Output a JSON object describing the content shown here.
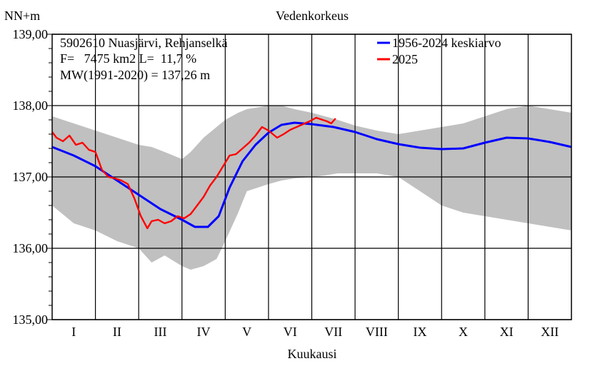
{
  "chart_data": {
    "type": "line",
    "title": "Vedenkorkeus",
    "ylabel": "NN+m",
    "xlabel": "Kuukausi",
    "ylim": [
      135.0,
      139.0
    ],
    "xlim": [
      0,
      12
    ],
    "yticks": [
      135.0,
      136.0,
      137.0,
      138.0,
      139.0
    ],
    "ytick_labels": [
      "135,00",
      "136,00",
      "137,00",
      "138,00",
      "139,00"
    ],
    "months": [
      "I",
      "II",
      "III",
      "IV",
      "V",
      "VI",
      "VII",
      "VIII",
      "IX",
      "X",
      "XI",
      "XII"
    ],
    "grid": true,
    "info_lines": [
      "5902610 Nuasjärvi, Rehjanselkä",
      "F=   7475 km2 L=  11,7 %",
      "MW(1991-2020) = 137,26 m"
    ],
    "legend_position": "top-right",
    "band": {
      "color": "#c0c0c0",
      "x": [
        0,
        0.5,
        1,
        1.5,
        2,
        2.3,
        2.6,
        3,
        3.2,
        3.5,
        3.8,
        4,
        4.3,
        4.5,
        5,
        5.3,
        5.6,
        6,
        6.3,
        6.6,
        7,
        7.5,
        8,
        8.5,
        9,
        9.5,
        10,
        10.5,
        11,
        11.5,
        12
      ],
      "max": [
        137.85,
        137.75,
        137.65,
        137.55,
        137.45,
        137.42,
        137.35,
        137.25,
        137.35,
        137.55,
        137.7,
        137.8,
        137.9,
        137.95,
        138.0,
        138.0,
        137.95,
        137.9,
        137.85,
        137.8,
        137.72,
        137.65,
        137.6,
        137.65,
        137.7,
        137.75,
        137.85,
        137.95,
        138.0,
        137.95,
        137.9
      ],
      "min": [
        136.6,
        136.35,
        136.25,
        136.1,
        136.0,
        135.8,
        135.9,
        135.75,
        135.7,
        135.75,
        135.85,
        136.1,
        136.5,
        136.8,
        136.9,
        136.95,
        136.98,
        137.0,
        137.02,
        137.05,
        137.05,
        137.05,
        137.0,
        136.8,
        136.6,
        136.5,
        136.45,
        136.4,
        136.35,
        136.3,
        136.25
      ]
    },
    "series": [
      {
        "name": "1956-2024 keskiarvo",
        "color": "#0000ff",
        "x": [
          0,
          0.5,
          1,
          1.5,
          2,
          2.5,
          3,
          3.3,
          3.6,
          3.85,
          4.1,
          4.4,
          4.7,
          5,
          5.3,
          5.6,
          6,
          6.5,
          7,
          7.5,
          8,
          8.5,
          9,
          9.5,
          10,
          10.5,
          11,
          11.5,
          12
        ],
        "values": [
          137.42,
          137.3,
          137.15,
          136.95,
          136.75,
          136.55,
          136.4,
          136.3,
          136.3,
          136.45,
          136.85,
          137.22,
          137.45,
          137.62,
          137.73,
          137.76,
          137.74,
          137.7,
          137.63,
          137.53,
          137.46,
          137.41,
          137.39,
          137.4,
          137.48,
          137.55,
          137.54,
          137.49,
          137.42
        ]
      },
      {
        "name": "2025",
        "color": "#ff0000",
        "x": [
          0,
          0.1,
          0.25,
          0.4,
          0.55,
          0.7,
          0.85,
          1,
          1.15,
          1.3,
          1.45,
          1.6,
          1.75,
          1.9,
          2.05,
          2.2,
          2.3,
          2.45,
          2.6,
          2.75,
          2.9,
          3.05,
          3.2,
          3.35,
          3.5,
          3.65,
          3.8,
          3.95,
          4.1,
          4.25,
          4.4,
          4.55,
          4.7,
          4.85,
          5,
          5.1,
          5.2,
          5.35,
          5.5,
          5.65,
          5.8,
          5.95,
          6.1,
          6.25,
          6.35,
          6.45,
          6.55
        ],
        "values": [
          137.63,
          137.55,
          137.5,
          137.58,
          137.45,
          137.48,
          137.38,
          137.35,
          137.1,
          137.0,
          136.98,
          136.95,
          136.9,
          136.7,
          136.45,
          136.28,
          136.38,
          136.4,
          136.35,
          136.38,
          136.45,
          136.42,
          136.48,
          136.6,
          136.72,
          136.88,
          137.0,
          137.15,
          137.3,
          137.32,
          137.4,
          137.48,
          137.58,
          137.7,
          137.65,
          137.6,
          137.55,
          137.6,
          137.66,
          137.7,
          137.74,
          137.78,
          137.83,
          137.8,
          137.78,
          137.75,
          137.82
        ]
      }
    ]
  }
}
